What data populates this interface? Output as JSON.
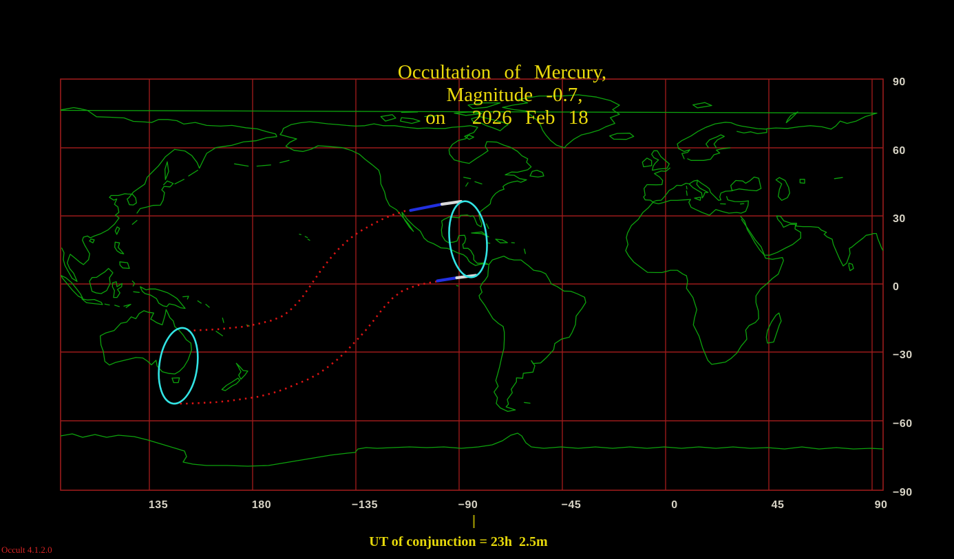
{
  "title": {
    "event": "Occultation of Mercury,",
    "magnitude": "Magnitude -0.7,",
    "date": "on  2026 Feb 18"
  },
  "axes": {
    "longitude_ticks": [
      "135",
      "180",
      "−135",
      "−90",
      "−45",
      "0",
      "45",
      "90"
    ],
    "latitude_ticks": [
      "90",
      "60",
      "30",
      "0",
      "−30",
      "−60",
      "−90"
    ]
  },
  "footer": {
    "conjunction_text": "UT of conjunction = 23h  2.5m",
    "version": "Occult 4.1.2.0"
  },
  "overlay": {
    "zone_1": "occultation-visibility-ellipse-americas",
    "zone_2": "occultation-visibility-ellipse-australia",
    "path_1": "northern-limit-dotted-curve",
    "path_2": "southern-limit-dotted-curve"
  },
  "colors": {
    "background": "#000000",
    "title_text": "#eada0c",
    "grid": "#9b1b1b",
    "coastline": "#0da30d",
    "tick_label": "#d8d4c6",
    "zone_ellipse": "#32e4e4",
    "limit_dotted": "#dd1414",
    "limit_blue": "#2230e0",
    "limit_white": "#d9d9d9",
    "conjunction_tick": "#a9a000",
    "conjunction_text": "#e6d80a",
    "version_text": "#d62424"
  }
}
